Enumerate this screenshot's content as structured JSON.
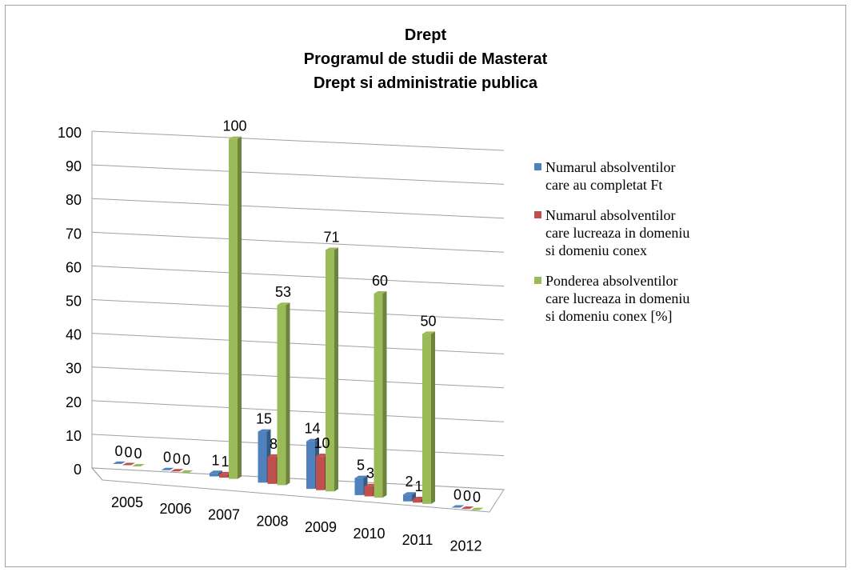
{
  "chart_data": {
    "type": "bar3d",
    "title": [
      "Drept",
      "Programul de studii de Masterat",
      "Drept si administratie publica"
    ],
    "categories": [
      "2005",
      "2006",
      "2007",
      "2008",
      "2009",
      "2010",
      "2011",
      "2012"
    ],
    "series": [
      {
        "name": "Numarul absolventilor care au completat Ft",
        "color": "#4f81bd",
        "values": [
          0,
          0,
          1,
          15,
          14,
          5,
          2,
          0
        ]
      },
      {
        "name": "Numarul absolventilor care lucreaza in domeniu si domeniu conex",
        "color": "#c0504d",
        "values": [
          0,
          0,
          1,
          8,
          10,
          3,
          1,
          0
        ]
      },
      {
        "name": "Ponderea absolventilor care lucreaza in domeniu si domeniu conex [%]",
        "color": "#9bbb59",
        "values": [
          0,
          0,
          100,
          53,
          71,
          60,
          50,
          0
        ]
      }
    ],
    "ylim": [
      0,
      100
    ],
    "yticks": [
      0,
      10,
      20,
      30,
      40,
      50,
      60,
      70,
      80,
      90,
      100
    ],
    "grid": true,
    "legend": "right"
  }
}
